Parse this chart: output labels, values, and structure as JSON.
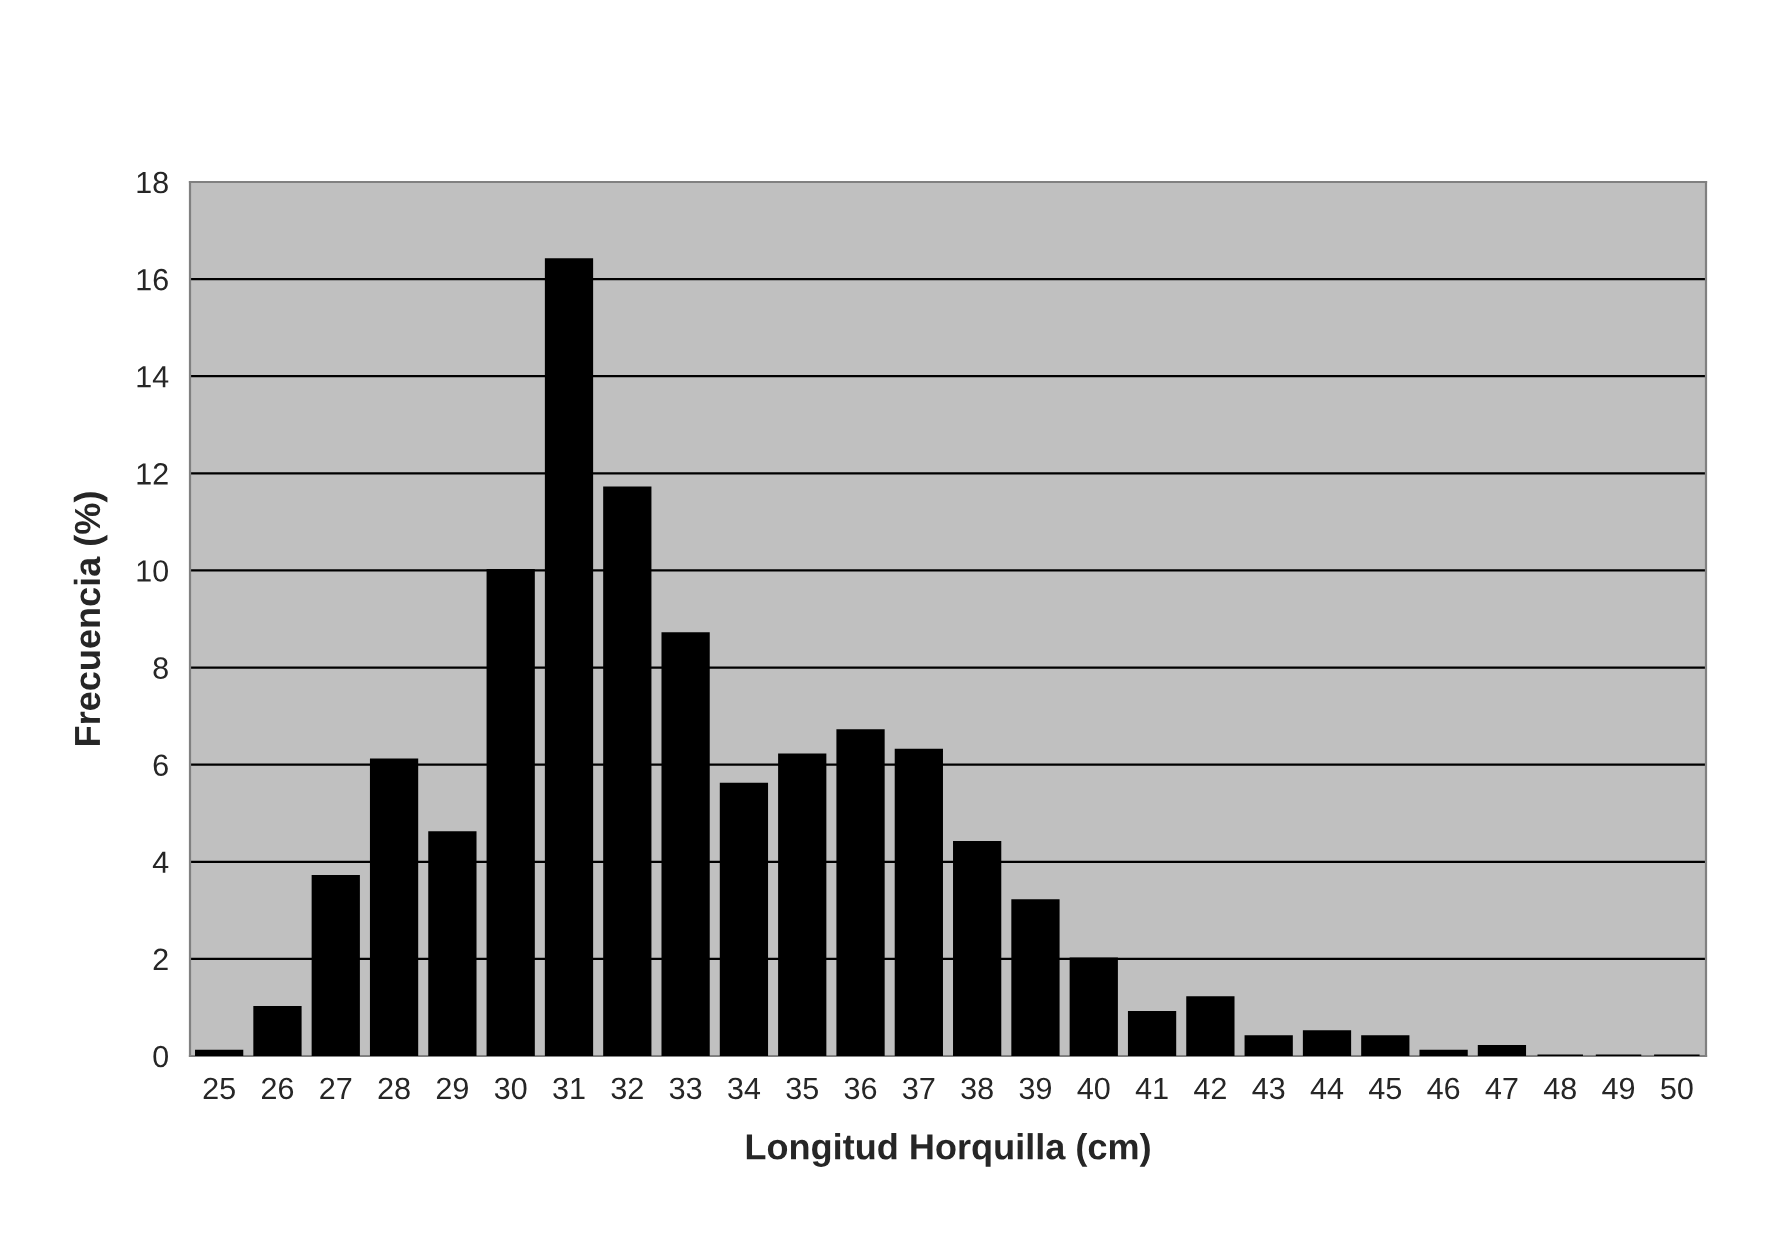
{
  "chart_data": {
    "type": "bar",
    "xlabel": "Longitud Horquilla (cm)",
    "ylabel": "Frecuencia (%)",
    "categories": [
      "25",
      "26",
      "27",
      "28",
      "29",
      "30",
      "31",
      "32",
      "33",
      "34",
      "35",
      "36",
      "37",
      "38",
      "39",
      "40",
      "41",
      "42",
      "43",
      "44",
      "45",
      "46",
      "47",
      "48",
      "49",
      "50"
    ],
    "values": [
      0.1,
      1.0,
      3.7,
      6.1,
      4.6,
      10.0,
      16.4,
      11.7,
      8.7,
      5.6,
      6.2,
      6.7,
      6.3,
      4.4,
      3.2,
      2.0,
      0.9,
      1.2,
      0.4,
      0.5,
      0.4,
      0.1,
      0.2,
      0,
      0,
      0
    ],
    "color": "#000000",
    "ylim": [
      0,
      18
    ],
    "yticks": [
      0,
      2,
      4,
      6,
      8,
      10,
      12,
      14,
      16,
      18
    ],
    "grid": "y",
    "legend": false
  }
}
